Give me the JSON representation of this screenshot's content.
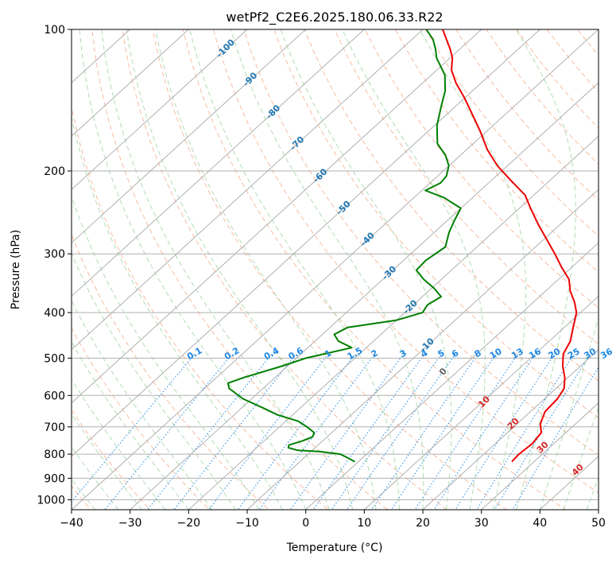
{
  "chart_data": {
    "type": "line",
    "subtype": "skew-t log-p diagram",
    "title": "wetPf2_C2E6.2025.180.06.33.R22",
    "xlabel": "Temperature (°C)",
    "ylabel": "Pressure (hPa)",
    "xlim": [
      -40,
      50
    ],
    "ylim": [
      1050,
      100
    ],
    "yscale": "log",
    "x_ticks": [
      -40,
      -30,
      -20,
      -10,
      0,
      10,
      20,
      30,
      40,
      50
    ],
    "x_tick_labels": [
      "−40",
      "−30",
      "−20",
      "−10",
      "0",
      "10",
      "20",
      "30",
      "40",
      "50"
    ],
    "y_ticks": [
      1000,
      900,
      800,
      700,
      600,
      500,
      400,
      300,
      200,
      100
    ],
    "y_tick_labels": [
      "1000",
      "900",
      "800",
      "700",
      "600",
      "500",
      "400",
      "300",
      "200",
      "100"
    ],
    "grid": true,
    "series": [
      {
        "role": "temperature",
        "color": "#ee0000",
        "points": [
          [
            830,
            26.2
          ],
          [
            800,
            26.0
          ],
          [
            760,
            26.3
          ],
          [
            720,
            25.8
          ],
          [
            690,
            24.0
          ],
          [
            650,
            22.5
          ],
          [
            610,
            22.2
          ],
          [
            580,
            21.4
          ],
          [
            550,
            19.5
          ],
          [
            520,
            17.0
          ],
          [
            490,
            14.8
          ],
          [
            460,
            13.6
          ],
          [
            430,
            11.5
          ],
          [
            400,
            9.3
          ],
          [
            380,
            7.0
          ],
          [
            360,
            4.2
          ],
          [
            340,
            1.8
          ],
          [
            320,
            -1.8
          ],
          [
            300,
            -5.4
          ],
          [
            280,
            -9.4
          ],
          [
            260,
            -13.7
          ],
          [
            240,
            -18.1
          ],
          [
            225,
            -21.5
          ],
          [
            210,
            -26.5
          ],
          [
            195,
            -31.7
          ],
          [
            180,
            -36.5
          ],
          [
            165,
            -41.0
          ],
          [
            150,
            -46.2
          ],
          [
            140,
            -50.0
          ],
          [
            130,
            -54.3
          ],
          [
            122,
            -57.5
          ],
          [
            115,
            -59.6
          ],
          [
            110,
            -61.7
          ],
          [
            105,
            -64.1
          ],
          [
            100,
            -66.6
          ]
        ]
      },
      {
        "role": "dewpoint",
        "color": "#007f00",
        "points": [
          [
            830,
            -0.6
          ],
          [
            815,
            -2.5
          ],
          [
            800,
            -4.5
          ],
          [
            790,
            -8.5
          ],
          [
            785,
            -12.5
          ],
          [
            775,
            -14.6
          ],
          [
            765,
            -15.0
          ],
          [
            750,
            -13.5
          ],
          [
            735,
            -12.5
          ],
          [
            720,
            -13.0
          ],
          [
            700,
            -15.3
          ],
          [
            680,
            -18.0
          ],
          [
            660,
            -22.6
          ],
          [
            640,
            -26.0
          ],
          [
            610,
            -31.5
          ],
          [
            580,
            -35.8
          ],
          [
            565,
            -37.0
          ],
          [
            550,
            -35.4
          ],
          [
            520,
            -31.0
          ],
          [
            500,
            -28.4
          ],
          [
            475,
            -22.5
          ],
          [
            460,
            -26.0
          ],
          [
            445,
            -28.0
          ],
          [
            430,
            -27.0
          ],
          [
            415,
            -20.0
          ],
          [
            400,
            -17.0
          ],
          [
            385,
            -17.6
          ],
          [
            370,
            -16.8
          ],
          [
            355,
            -19.6
          ],
          [
            340,
            -23.0
          ],
          [
            325,
            -26.0
          ],
          [
            310,
            -26.2
          ],
          [
            290,
            -25.4
          ],
          [
            270,
            -27.5
          ],
          [
            255,
            -28.8
          ],
          [
            240,
            -30.0
          ],
          [
            228,
            -34.8
          ],
          [
            220,
            -39.4
          ],
          [
            212,
            -38.2
          ],
          [
            205,
            -38.5
          ],
          [
            195,
            -40.0
          ],
          [
            185,
            -42.6
          ],
          [
            175,
            -46.1
          ],
          [
            160,
            -49.6
          ],
          [
            145,
            -52.6
          ],
          [
            135,
            -54.7
          ],
          [
            125,
            -57.7
          ],
          [
            115,
            -62.3
          ],
          [
            110,
            -64.2
          ],
          [
            105,
            -66.4
          ],
          [
            100,
            -69.4
          ]
        ]
      }
    ],
    "isotherm_labels": [
      "-100",
      "-90",
      "-80",
      "-70",
      "-60",
      "-50",
      "-40",
      "-30",
      "-20",
      "-10"
    ],
    "mixing_ratio_labels": [
      "0.1",
      "0.2",
      "0.4",
      "0.6",
      "1",
      "1.5",
      "2",
      "3",
      "4",
      "5",
      "6",
      "8",
      "10",
      "13",
      "16",
      "20",
      "25",
      "30",
      "36"
    ],
    "moist_adiabat_labels": [
      "0",
      "10",
      "20",
      "30",
      "40"
    ],
    "colors": {
      "isotherm": "#b0b0b0",
      "dry_adiabat": "#f4a582",
      "moist_adiabat": "#9fd39f",
      "mixing_ratio": "#1e88e5",
      "isotherm_label": "#1f77b4",
      "moist_label": "#d62728"
    }
  }
}
